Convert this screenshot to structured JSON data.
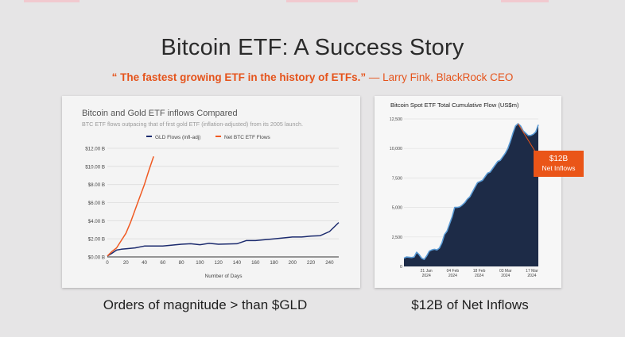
{
  "slide": {
    "title": "Bitcoin ETF: A Success Story",
    "quote": "“ The fastest growing ETF in the history of ETFs.”",
    "attribution": "— Larry Fink, BlackRock CEO",
    "caption_left": "Orders of magnitude > than $GLD",
    "caption_right": "$12B of Net Inflows",
    "accent_color": "#e5531b"
  },
  "callout": {
    "value": "$12B",
    "label": "Net Inflows"
  },
  "chart_data": [
    {
      "type": "line",
      "title": "Bitcoin and Gold ETF inflows Compared",
      "subtitle": "BTC ETF flows outpacing that of first gold ETF (inflation-adjusted) from its 2005 launch.",
      "xlabel": "Number of Days",
      "ylabel": "",
      "xlim": [
        0,
        250
      ],
      "ylim": [
        0,
        12
      ],
      "x_ticks": [
        "0",
        "20",
        "40",
        "60",
        "80",
        "100",
        "120",
        "140",
        "160",
        "180",
        "200",
        "220",
        "240"
      ],
      "y_ticks": [
        "$0.00 B",
        "$2.00 B",
        "$4.00 B",
        "$6.00 B",
        "$8.00 B",
        "$10.00 B",
        "$12.00 B"
      ],
      "grid": true,
      "legend_position": "top-center",
      "series": [
        {
          "name": "GLD Flows (infl-adj)",
          "color": "#1c2b6e",
          "x": [
            0,
            5,
            10,
            15,
            20,
            30,
            40,
            60,
            80,
            90,
            100,
            110,
            120,
            140,
            150,
            160,
            180,
            200,
            210,
            220,
            230,
            240,
            250
          ],
          "y": [
            0.1,
            0.4,
            0.75,
            0.85,
            0.9,
            1.0,
            1.2,
            1.2,
            1.4,
            1.45,
            1.35,
            1.5,
            1.4,
            1.45,
            1.8,
            1.8,
            2.0,
            2.2,
            2.2,
            2.3,
            2.35,
            2.8,
            3.8
          ]
        },
        {
          "name": "Net BTC ETF Flows",
          "color": "#f05a22",
          "x": [
            0,
            5,
            10,
            15,
            20,
            25,
            30,
            35,
            40,
            45,
            50
          ],
          "y": [
            0.1,
            0.6,
            1.0,
            1.8,
            2.6,
            3.8,
            5.2,
            6.6,
            8.0,
            9.6,
            11.1
          ]
        }
      ]
    },
    {
      "type": "area",
      "title": "Bitcoin Spot ETF Total Cumulative Flow (US$m)",
      "xlabel": "",
      "ylabel": "",
      "ylim": [
        0,
        12500
      ],
      "y_ticks": [
        "0",
        "2,500",
        "5,000",
        "7,500",
        "10,000",
        "12,500"
      ],
      "x_ticks": [
        "21 Jan 2024",
        "04 Feb 2024",
        "18 Feb 2024",
        "03 Mar 2024",
        "17 Mar 2024"
      ],
      "grid": true,
      "colors": {
        "fill": "#1d2b47",
        "line": "#5b9bd5"
      },
      "series": [
        {
          "name": "",
          "x": [
            0,
            1,
            2,
            3,
            4,
            5,
            6,
            7,
            8,
            9,
            10,
            11,
            12,
            13,
            14,
            15,
            16,
            17,
            18,
            19,
            20,
            21,
            22,
            23,
            24,
            25,
            26,
            27,
            28,
            29,
            30,
            31,
            32,
            33,
            34,
            35,
            36,
            37,
            38,
            39,
            40,
            41,
            42,
            43,
            44,
            45,
            46,
            47,
            48,
            49,
            50,
            51,
            52,
            53
          ],
          "y": [
            700,
            800,
            780,
            750,
            800,
            1200,
            1000,
            700,
            600,
            900,
            1300,
            1400,
            1450,
            1400,
            1550,
            2000,
            2700,
            3000,
            3600,
            4200,
            5000,
            5000,
            5050,
            5200,
            5400,
            5700,
            5900,
            6300,
            6700,
            7100,
            7200,
            7300,
            7600,
            7900,
            8000,
            8300,
            8600,
            8900,
            9000,
            9300,
            9600,
            10000,
            10600,
            11300,
            11900,
            12100,
            11900,
            11500,
            11300,
            11100,
            11100,
            11200,
            11400,
            12000
          ]
        }
      ]
    }
  ]
}
